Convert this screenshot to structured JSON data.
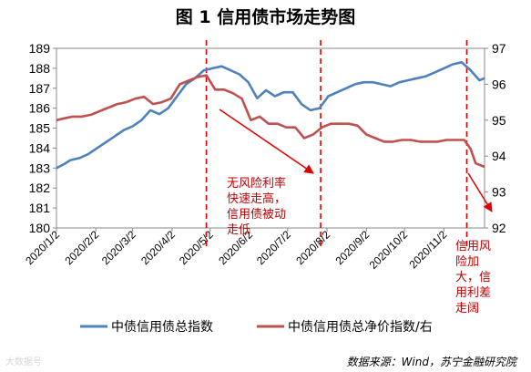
{
  "figure_title": "图 1  信用债市场走势图",
  "source_note": "数据来源：Wind，苏宁金融研究院",
  "watermark": "大数据号",
  "annotations": [
    "无风险利率\n快速走高，\n信用债被动\n走低",
    "信用风\n险加\n大，信\n用利差\n走阔"
  ],
  "colors": {
    "blue": "#4f81bd",
    "red": "#c0504d",
    "annotation": "#c00000"
  },
  "chart_data": {
    "type": "line",
    "title": "图 1  信用债市场走势图",
    "x_ticks": [
      "2020/1/2",
      "2020/2/2",
      "2020/3/2",
      "2020/4/2",
      "2020/5/2",
      "2020/6/2",
      "2020/7/2",
      "2020/8/2",
      "2020/9/2",
      "2020/10/2",
      "2020/11/2"
    ],
    "x_range": [
      "2020-01-02",
      "2020-12-04"
    ],
    "y_left": {
      "min": 180,
      "max": 189,
      "ticks": [
        180,
        181,
        182,
        183,
        184,
        185,
        186,
        187,
        188,
        189
      ]
    },
    "y_right": {
      "min": 92,
      "max": 97,
      "ticks": [
        92,
        93,
        94,
        95,
        96,
        97
      ]
    },
    "legend": "bottom",
    "grid": false,
    "reference_dates": [
      "2020-04-29",
      "2020-07-28",
      "2020-11-20"
    ],
    "series": [
      {
        "name": "中债信用债总指数",
        "axis": "left",
        "color": "#4f81bd",
        "points": [
          [
            "2020-01-02",
            183.0
          ],
          [
            "2020-01-08",
            183.2
          ],
          [
            "2020-01-13",
            183.4
          ],
          [
            "2020-01-20",
            183.5
          ],
          [
            "2020-01-27",
            183.7
          ],
          [
            "2020-02-03",
            184.0
          ],
          [
            "2020-02-10",
            184.3
          ],
          [
            "2020-02-17",
            184.6
          ],
          [
            "2020-02-24",
            184.9
          ],
          [
            "2020-03-02",
            185.1
          ],
          [
            "2020-03-09",
            185.4
          ],
          [
            "2020-03-16",
            185.9
          ],
          [
            "2020-03-23",
            185.7
          ],
          [
            "2020-03-30",
            186.0
          ],
          [
            "2020-04-06",
            186.6
          ],
          [
            "2020-04-13",
            187.2
          ],
          [
            "2020-04-20",
            187.5
          ],
          [
            "2020-04-27",
            187.9
          ],
          [
            "2020-05-04",
            188.0
          ],
          [
            "2020-05-11",
            188.1
          ],
          [
            "2020-05-18",
            187.9
          ],
          [
            "2020-05-25",
            187.7
          ],
          [
            "2020-06-01",
            187.3
          ],
          [
            "2020-06-08",
            186.5
          ],
          [
            "2020-06-15",
            186.9
          ],
          [
            "2020-06-22",
            186.6
          ],
          [
            "2020-06-29",
            186.8
          ],
          [
            "2020-07-06",
            186.8
          ],
          [
            "2020-07-13",
            186.2
          ],
          [
            "2020-07-20",
            185.9
          ],
          [
            "2020-07-27",
            186.0
          ],
          [
            "2020-08-03",
            186.6
          ],
          [
            "2020-08-10",
            186.8
          ],
          [
            "2020-08-17",
            187.0
          ],
          [
            "2020-08-24",
            187.2
          ],
          [
            "2020-08-31",
            187.3
          ],
          [
            "2020-09-07",
            187.3
          ],
          [
            "2020-09-14",
            187.2
          ],
          [
            "2020-09-21",
            187.1
          ],
          [
            "2020-09-28",
            187.3
          ],
          [
            "2020-10-05",
            187.4
          ],
          [
            "2020-10-12",
            187.5
          ],
          [
            "2020-10-19",
            187.6
          ],
          [
            "2020-10-26",
            187.8
          ],
          [
            "2020-11-02",
            188.0
          ],
          [
            "2020-11-09",
            188.2
          ],
          [
            "2020-11-16",
            188.3
          ],
          [
            "2020-11-23",
            187.9
          ],
          [
            "2020-11-30",
            187.4
          ],
          [
            "2020-12-04",
            187.5
          ]
        ]
      },
      {
        "name": "中债信用债总净价指数/右",
        "axis": "right",
        "color": "#c0504d",
        "points": [
          [
            "2020-01-02",
            95.0
          ],
          [
            "2020-01-08",
            95.05
          ],
          [
            "2020-01-15",
            95.1
          ],
          [
            "2020-01-22",
            95.1
          ],
          [
            "2020-01-29",
            95.15
          ],
          [
            "2020-02-05",
            95.25
          ],
          [
            "2020-02-12",
            95.35
          ],
          [
            "2020-02-19",
            95.45
          ],
          [
            "2020-02-26",
            95.5
          ],
          [
            "2020-03-04",
            95.6
          ],
          [
            "2020-03-11",
            95.65
          ],
          [
            "2020-03-18",
            95.45
          ],
          [
            "2020-03-25",
            95.5
          ],
          [
            "2020-04-01",
            95.6
          ],
          [
            "2020-04-08",
            96.0
          ],
          [
            "2020-04-15",
            96.1
          ],
          [
            "2020-04-22",
            96.2
          ],
          [
            "2020-04-29",
            96.25
          ],
          [
            "2020-05-06",
            95.85
          ],
          [
            "2020-05-13",
            95.85
          ],
          [
            "2020-05-20",
            95.75
          ],
          [
            "2020-05-27",
            95.6
          ],
          [
            "2020-06-03",
            95.0
          ],
          [
            "2020-06-10",
            95.1
          ],
          [
            "2020-06-17",
            94.9
          ],
          [
            "2020-06-24",
            94.9
          ],
          [
            "2020-07-01",
            94.8
          ],
          [
            "2020-07-08",
            94.8
          ],
          [
            "2020-07-15",
            94.5
          ],
          [
            "2020-07-22",
            94.6
          ],
          [
            "2020-07-29",
            94.8
          ],
          [
            "2020-08-05",
            94.9
          ],
          [
            "2020-08-12",
            94.9
          ],
          [
            "2020-08-19",
            94.9
          ],
          [
            "2020-08-26",
            94.85
          ],
          [
            "2020-09-02",
            94.6
          ],
          [
            "2020-09-09",
            94.5
          ],
          [
            "2020-09-16",
            94.4
          ],
          [
            "2020-09-23",
            94.4
          ],
          [
            "2020-09-30",
            94.45
          ],
          [
            "2020-10-07",
            94.45
          ],
          [
            "2020-10-14",
            94.4
          ],
          [
            "2020-10-21",
            94.4
          ],
          [
            "2020-10-28",
            94.4
          ],
          [
            "2020-11-04",
            94.45
          ],
          [
            "2020-11-11",
            94.45
          ],
          [
            "2020-11-18",
            94.45
          ],
          [
            "2020-11-23",
            94.2
          ],
          [
            "2020-11-27",
            93.8
          ],
          [
            "2020-12-04",
            93.7
          ]
        ]
      }
    ]
  }
}
